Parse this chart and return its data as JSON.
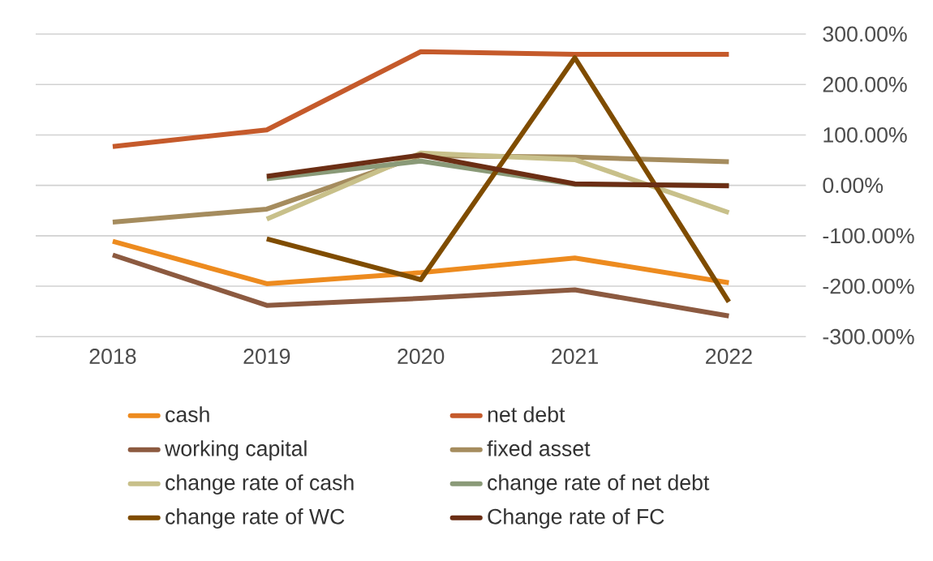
{
  "chart_data": {
    "type": "line",
    "categories": [
      "2018",
      "2019",
      "2020",
      "2021",
      "2022"
    ],
    "series": [
      {
        "name": "cash",
        "color": "#ed8b1f",
        "values": [
          -111,
          -195,
          -173,
          -144,
          -193
        ]
      },
      {
        "name": "net debt",
        "color": "#c55a2b",
        "values": [
          77,
          110,
          265,
          260,
          260
        ]
      },
      {
        "name": "working capital",
        "color": "#8c5a40",
        "values": [
          -138,
          -238,
          -224,
          -207,
          -259
        ]
      },
      {
        "name": "fixed asset",
        "color": "#a58c5e",
        "values": [
          -73,
          -47,
          59,
          56,
          47
        ]
      },
      {
        "name": "change rate of cash",
        "color": "#c8c08a",
        "values": [
          null,
          -67,
          64,
          51,
          -54
        ]
      },
      {
        "name": "change rate of net debt",
        "color": "#8a9a78",
        "values": [
          null,
          13,
          48,
          2,
          0
        ]
      },
      {
        "name": "change rate of WC",
        "color": "#7f4c00",
        "values": [
          null,
          -106,
          -187,
          253,
          -231
        ]
      },
      {
        "name": "Change rate of FC",
        "color": "#6b2e14",
        "values": [
          null,
          18,
          60,
          3,
          -1
        ]
      }
    ],
    "ylim": [
      -300,
      300
    ],
    "yticks": [
      {
        "value": -300,
        "label": "-300.00%"
      },
      {
        "value": -200,
        "label": "-200.00%"
      },
      {
        "value": -100,
        "label": "-100.00%"
      },
      {
        "value": 0,
        "label": "0.00%"
      },
      {
        "value": 100,
        "label": "100.00%"
      },
      {
        "value": 200,
        "label": "200.00%"
      },
      {
        "value": 300,
        "label": "300.00%"
      }
    ],
    "grid": "y",
    "legend": "bottom",
    "line_style": "solid"
  }
}
